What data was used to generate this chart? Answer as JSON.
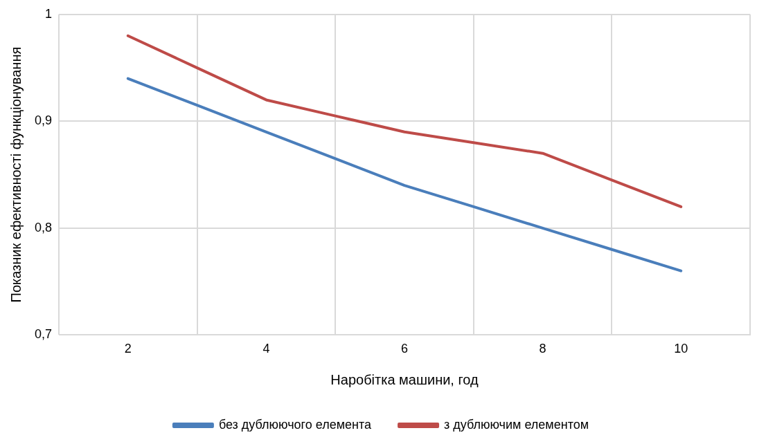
{
  "chart_data": {
    "type": "line",
    "xlabel": "Наробітка машини, год",
    "ylabel": "Показник ефективності функціонування",
    "x": [
      2,
      3,
      4,
      5,
      6,
      7,
      8,
      9,
      10
    ],
    "series": [
      {
        "name": "без дублюючого елемента",
        "color": "#4a7ebb",
        "values": [
          0.94,
          0.915,
          0.89,
          0.865,
          0.84,
          0.82,
          0.8,
          0.78,
          0.76
        ]
      },
      {
        "name": "з дублюючим елементом",
        "color": "#be4b48",
        "values": [
          0.98,
          0.95,
          0.92,
          0.905,
          0.89,
          0.88,
          0.87,
          0.845,
          0.82
        ]
      }
    ],
    "xlim": [
      1,
      11
    ],
    "xticks": [
      {
        "value": 1,
        "label": null
      },
      2,
      {
        "value": 3,
        "label": null
      },
      4,
      {
        "value": 5,
        "label": null
      },
      6,
      {
        "value": 7,
        "label": null
      },
      8,
      {
        "value": 9,
        "label": null
      },
      10,
      {
        "value": 11,
        "label": null
      }
    ],
    "ylim": [
      0.7,
      1
    ],
    "yticks": [
      {
        "value": 0.7,
        "label": "0,7"
      },
      {
        "value": 0.8,
        "label": "0,8"
      },
      {
        "value": 0.9,
        "label": "0,9"
      },
      1
    ],
    "grid": true,
    "legend": "bottom",
    "marker": "none",
    "line_style": "solid"
  }
}
